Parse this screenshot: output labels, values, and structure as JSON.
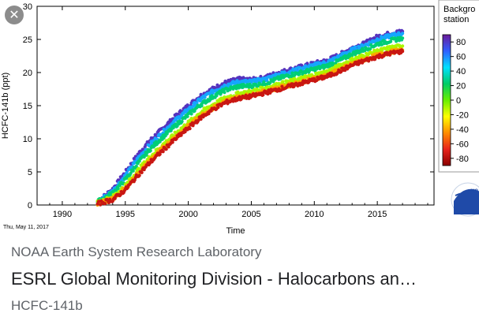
{
  "result": {
    "source": "NOAA Earth System Research Laboratory",
    "headline": "ESRL Global Monitoring Division - Halocarbons an…",
    "subtitle": "HCFC-141b",
    "close_icon": "close-icon"
  },
  "colors": {
    "accent_text": "#202124",
    "secondary_text": "#5f6368"
  },
  "chart_data": {
    "type": "scatter",
    "title": "",
    "xlabel": "Time",
    "ylabel": "HCFC-141b (ppt)",
    "xlim": [
      1988,
      2019.5
    ],
    "ylim": [
      0,
      30
    ],
    "xticks": [
      1990,
      1995,
      2000,
      2005,
      2010,
      2015
    ],
    "yticks": [
      0,
      5,
      10,
      15,
      20,
      25,
      30
    ],
    "grid": false,
    "date_stamp": "Thu, May 11, 2017",
    "colorbar": {
      "title_lines": [
        "Backgro",
        "station"
      ],
      "ticks": [
        80,
        60,
        40,
        20,
        0,
        -20,
        -40,
        -60,
        -80
      ],
      "range": [
        -90,
        90
      ],
      "colormap": [
        "#8b0000",
        "#e8231b",
        "#ff8c00",
        "#ffff00",
        "#66ee00",
        "#00cc66",
        "#00e0ff",
        "#2f5fff",
        "#6a1b9a"
      ]
    },
    "series": [
      {
        "latitude": 82,
        "values": [
          [
            1992.8,
            0.5
          ],
          [
            1994,
            2.4
          ],
          [
            1995,
            4.9
          ],
          [
            1996,
            7.6
          ],
          [
            1997,
            9.8
          ],
          [
            1998,
            11.6
          ],
          [
            1999,
            13.4
          ],
          [
            2000,
            15.0
          ],
          [
            2001,
            16.5
          ],
          [
            2002,
            17.6
          ],
          [
            2003,
            18.5
          ],
          [
            2004,
            19.0
          ],
          [
            2005,
            18.9
          ],
          [
            2006,
            19.2
          ],
          [
            2007,
            19.9
          ],
          [
            2008,
            20.4
          ],
          [
            2009,
            20.9
          ],
          [
            2010,
            21.4
          ],
          [
            2011,
            21.8
          ],
          [
            2012,
            22.7
          ],
          [
            2013,
            23.7
          ],
          [
            2014,
            24.4
          ],
          [
            2015,
            25.4
          ],
          [
            2016,
            25.9
          ],
          [
            2017,
            26.2
          ]
        ]
      },
      {
        "latitude": 55,
        "values": [
          [
            1992.8,
            0.5
          ],
          [
            1994,
            2.1
          ],
          [
            1995,
            4.4
          ],
          [
            1996,
            7.0
          ],
          [
            1997,
            9.2
          ],
          [
            1998,
            11.0
          ],
          [
            1999,
            12.8
          ],
          [
            2000,
            14.4
          ],
          [
            2001,
            16.0
          ],
          [
            2002,
            17.2
          ],
          [
            2003,
            18.1
          ],
          [
            2004,
            18.6
          ],
          [
            2005,
            18.6
          ],
          [
            2006,
            18.9
          ],
          [
            2007,
            19.6
          ],
          [
            2008,
            20.1
          ],
          [
            2009,
            20.6
          ],
          [
            2010,
            21.1
          ],
          [
            2011,
            21.5
          ],
          [
            2012,
            22.4
          ],
          [
            2013,
            23.4
          ],
          [
            2014,
            24.1
          ],
          [
            2015,
            25.0
          ],
          [
            2016,
            25.5
          ],
          [
            2017,
            25.9
          ]
        ]
      },
      {
        "latitude": 25,
        "values": [
          [
            1992.8,
            0.5
          ],
          [
            1994,
            1.8
          ],
          [
            1995,
            3.8
          ],
          [
            1996,
            6.3
          ],
          [
            1997,
            8.5
          ],
          [
            1998,
            10.3
          ],
          [
            1999,
            12.0
          ],
          [
            2000,
            13.6
          ],
          [
            2001,
            15.2
          ],
          [
            2002,
            16.4
          ],
          [
            2003,
            17.4
          ],
          [
            2004,
            17.9
          ],
          [
            2005,
            18.0
          ],
          [
            2006,
            18.3
          ],
          [
            2007,
            19.0
          ],
          [
            2008,
            19.6
          ],
          [
            2009,
            20.0
          ],
          [
            2010,
            20.5
          ],
          [
            2011,
            21.0
          ],
          [
            2012,
            21.8
          ],
          [
            2013,
            22.8
          ],
          [
            2014,
            23.5
          ],
          [
            2015,
            24.3
          ],
          [
            2016,
            24.8
          ],
          [
            2017,
            25.2
          ]
        ]
      },
      {
        "latitude": -10,
        "values": [
          [
            1992.8,
            0.3
          ],
          [
            1994,
            1.2
          ],
          [
            1995,
            2.9
          ],
          [
            1996,
            5.2
          ],
          [
            1997,
            7.3
          ],
          [
            1998,
            9.1
          ],
          [
            1999,
            10.8
          ],
          [
            2000,
            12.4
          ],
          [
            2001,
            14.0
          ],
          [
            2002,
            15.2
          ],
          [
            2003,
            16.2
          ],
          [
            2004,
            16.8
          ],
          [
            2005,
            17.1
          ],
          [
            2006,
            17.6
          ],
          [
            2007,
            18.1
          ],
          [
            2008,
            18.6
          ],
          [
            2009,
            19.1
          ],
          [
            2010,
            19.6
          ],
          [
            2011,
            20.1
          ],
          [
            2012,
            21.0
          ],
          [
            2013,
            21.9
          ],
          [
            2014,
            22.6
          ],
          [
            2015,
            23.2
          ],
          [
            2016,
            23.7
          ],
          [
            2017,
            24.0
          ]
        ]
      },
      {
        "latitude": -40,
        "values": [
          [
            1992.8,
            0.2
          ],
          [
            1994,
            0.9
          ],
          [
            1995,
            2.5
          ],
          [
            1996,
            4.7
          ],
          [
            1997,
            6.8
          ],
          [
            1998,
            8.6
          ],
          [
            1999,
            10.3
          ],
          [
            2000,
            11.9
          ],
          [
            2001,
            13.5
          ],
          [
            2002,
            14.7
          ],
          [
            2003,
            15.7
          ],
          [
            2004,
            16.3
          ],
          [
            2005,
            16.6
          ],
          [
            2006,
            17.1
          ],
          [
            2007,
            17.6
          ],
          [
            2008,
            18.1
          ],
          [
            2009,
            18.6
          ],
          [
            2010,
            19.1
          ],
          [
            2011,
            19.6
          ],
          [
            2012,
            20.4
          ],
          [
            2013,
            21.3
          ],
          [
            2014,
            22.0
          ],
          [
            2015,
            22.6
          ],
          [
            2016,
            23.1
          ],
          [
            2017,
            23.4
          ]
        ]
      },
      {
        "latitude": -75,
        "values": [
          [
            1992.8,
            0.2
          ],
          [
            1994,
            0.8
          ],
          [
            1995,
            2.3
          ],
          [
            1996,
            4.5
          ],
          [
            1997,
            6.5
          ],
          [
            1998,
            8.3
          ],
          [
            1999,
            10.0
          ],
          [
            2000,
            11.6
          ],
          [
            2001,
            13.2
          ],
          [
            2002,
            14.5
          ],
          [
            2003,
            15.5
          ],
          [
            2004,
            16.1
          ],
          [
            2005,
            16.4
          ],
          [
            2006,
            16.9
          ],
          [
            2007,
            17.4
          ],
          [
            2008,
            17.9
          ],
          [
            2009,
            18.4
          ],
          [
            2010,
            18.9
          ],
          [
            2011,
            19.4
          ],
          [
            2012,
            20.2
          ],
          [
            2013,
            21.1
          ],
          [
            2014,
            21.8
          ],
          [
            2015,
            22.4
          ],
          [
            2016,
            22.9
          ],
          [
            2017,
            23.2
          ]
        ]
      }
    ]
  }
}
